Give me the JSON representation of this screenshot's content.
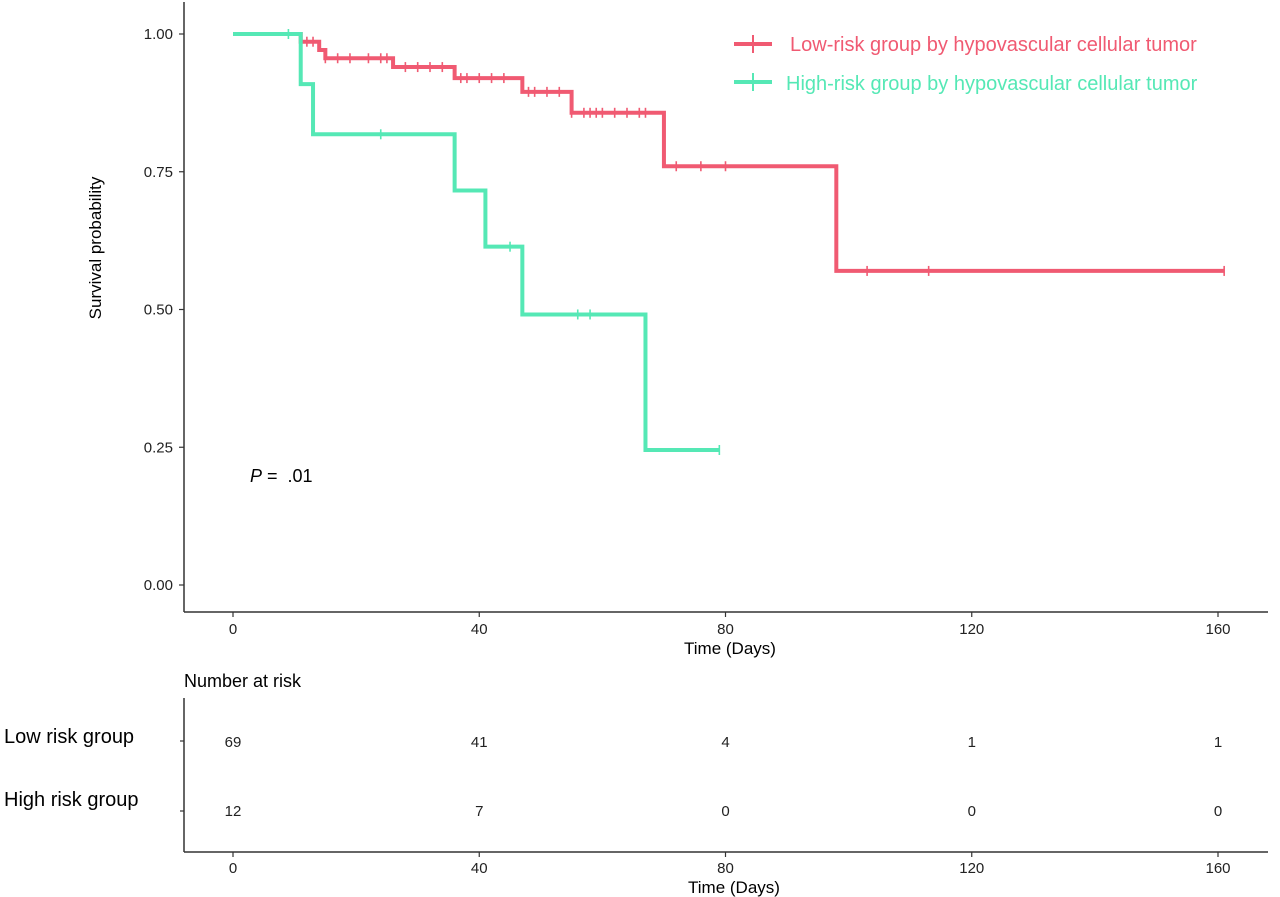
{
  "chart_data": {
    "type": "line",
    "subtype": "kaplan-meier",
    "ylabel": "Survival probability",
    "xlabel": "Time (Days)",
    "xlim": [
      0,
      160
    ],
    "ylim": [
      0,
      1
    ],
    "x_ticks": [
      "0",
      "40",
      "80",
      "120",
      "160"
    ],
    "y_ticks": [
      "0.00",
      "0.25",
      "0.50",
      "0.75",
      "1.00"
    ],
    "legend_position": "top-right",
    "grid": false,
    "annotation": {
      "p_symbol": "P",
      "p_text": " =  .01"
    },
    "series": [
      {
        "name": "Low-risk group by hypovascular cellular tumor",
        "color": "#f05a72",
        "steps": [
          [
            0,
            1.0
          ],
          [
            11,
            0.986
          ],
          [
            14,
            0.971
          ],
          [
            15,
            0.956
          ],
          [
            26,
            0.94
          ],
          [
            36,
            0.92
          ],
          [
            47,
            0.895
          ],
          [
            55,
            0.857
          ],
          [
            70,
            0.76
          ],
          [
            98,
            0.57
          ],
          [
            161,
            0.57
          ]
        ],
        "censor_times": [
          11,
          12,
          13,
          15,
          17,
          19,
          22,
          24,
          25,
          28,
          30,
          32,
          34,
          37,
          38,
          40,
          42,
          44,
          48,
          49,
          51,
          53,
          55,
          57,
          58,
          59,
          60,
          62,
          64,
          66,
          67,
          72,
          76,
          80,
          103,
          113,
          161
        ]
      },
      {
        "name": "High-risk group by hypovascular cellular tumor",
        "color": "#55e8b5",
        "steps": [
          [
            0,
            1.0
          ],
          [
            11,
            0.909
          ],
          [
            13,
            0.818
          ],
          [
            36,
            0.716
          ],
          [
            41,
            0.614
          ],
          [
            47,
            0.491
          ],
          [
            67,
            0.245
          ],
          [
            79,
            0.245
          ]
        ],
        "censor_times": [
          9,
          24,
          45,
          56,
          58,
          79
        ]
      }
    ]
  },
  "risk_table": {
    "title": "Number at risk",
    "xlabel": "Time (Days)",
    "x_ticks": [
      "0",
      "40",
      "80",
      "120",
      "160"
    ],
    "rows": [
      {
        "label": "Low risk group",
        "values": [
          "69",
          "41",
          "4",
          "1",
          "1"
        ]
      },
      {
        "label": "High risk group",
        "values": [
          "12",
          "7",
          "0",
          "0",
          "0"
        ]
      }
    ]
  }
}
